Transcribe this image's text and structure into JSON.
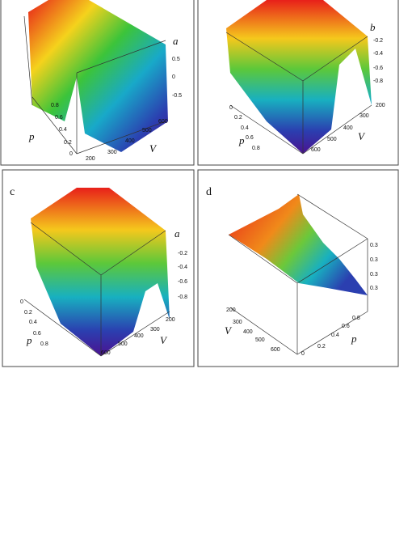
{
  "panels": [
    {
      "z_label": "a",
      "z_ticks": [
        "0.5",
        "0",
        "-0.5"
      ],
      "p_label": "p",
      "p_ticks": [
        "0.8",
        "0.6",
        "0.4",
        "0.2",
        "0"
      ],
      "v_label": "V",
      "v_ticks": [
        "200",
        "300",
        "400",
        "500",
        "600"
      ]
    },
    {
      "z_label": "b",
      "z_ticks": [
        "-0.2",
        "-0.4",
        "-0.6",
        "-0.8"
      ],
      "p_label": "p",
      "p_ticks": [
        "0",
        "0.2",
        "0.4",
        "0.6",
        "0.8"
      ],
      "v_label": "V",
      "v_ticks": [
        "600",
        "500",
        "400",
        "300",
        "200"
      ]
    },
    {
      "label": "c",
      "z_label": "a",
      "z_ticks": [
        "-0.2",
        "-0.4",
        "-0.6",
        "-0.8"
      ],
      "p_label": "p",
      "p_ticks": [
        "0",
        "0.2",
        "0.4",
        "0.6",
        "0.8"
      ],
      "v_label": "V",
      "v_ticks": [
        "600",
        "500",
        "400",
        "300",
        "200"
      ]
    },
    {
      "label": "d",
      "z_ticks": [
        "0.3",
        "0.3",
        "0.3",
        "0.3"
      ],
      "p_label": "p",
      "p_ticks": [
        "0",
        "0.2",
        "0.4",
        "0.6",
        "0.8"
      ],
      "v_label": "V",
      "v_ticks": [
        "200",
        "300",
        "400",
        "500",
        "600"
      ]
    }
  ]
}
